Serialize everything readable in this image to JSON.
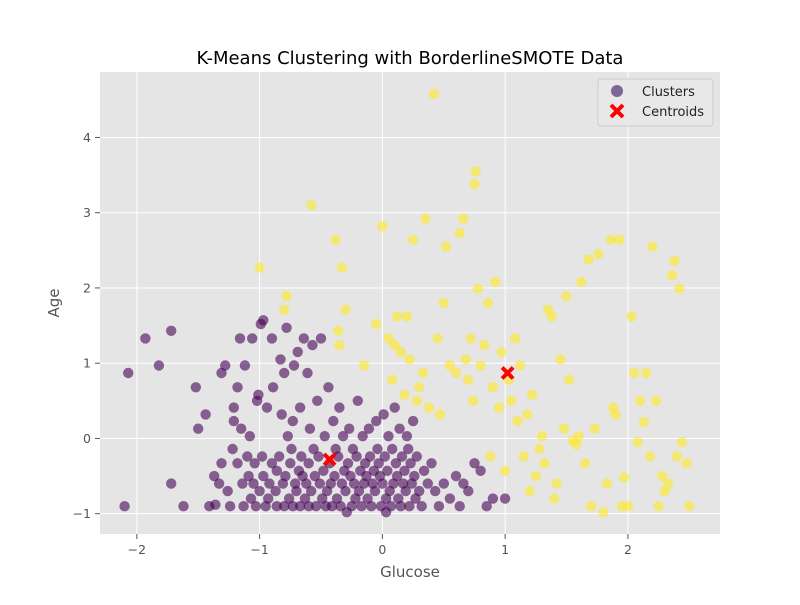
{
  "chart_data": {
    "type": "scatter",
    "title": "K-Means Clustering with BorderlineSMOTE Data",
    "xlabel": "Glucose",
    "ylabel": "Age",
    "xlim": [
      -2.3,
      2.75
    ],
    "ylim": [
      -1.27,
      4.87
    ],
    "xticks": [
      -2,
      -1,
      0,
      1,
      2
    ],
    "yticks": [
      -1,
      0,
      1,
      2,
      3,
      4
    ],
    "xtick_labels": [
      "−2",
      "−1",
      "0",
      "1",
      "2"
    ],
    "ytick_labels": [
      "−1",
      "0",
      "1",
      "2",
      "3",
      "4"
    ],
    "grid": true,
    "legend_position": "top-right",
    "legend": [
      {
        "label": "Clusters",
        "marker": "circle",
        "color": "#5a3d7a"
      },
      {
        "label": "Centroids",
        "marker": "x",
        "color": "#ff0000"
      }
    ],
    "colors": {
      "cluster_0": "#440154",
      "cluster_1": "#fde725",
      "centroid": "#ff0000",
      "plot_background": "#e5e5e5",
      "grid": "#ffffff"
    },
    "centroids": [
      {
        "x": -0.43,
        "y": -0.28
      },
      {
        "x": 1.02,
        "y": 0.87
      }
    ],
    "series": [
      {
        "cluster": 0,
        "points": [
          [
            -2.1,
            -0.9
          ],
          [
            -2.07,
            0.87
          ],
          [
            -1.93,
            1.33
          ],
          [
            -1.82,
            0.97
          ],
          [
            -1.72,
            1.43
          ],
          [
            -1.72,
            -0.6
          ],
          [
            -1.62,
            -0.9
          ],
          [
            -1.52,
            0.68
          ],
          [
            -1.5,
            0.13
          ],
          [
            -1.44,
            0.32
          ],
          [
            -1.41,
            -0.9
          ],
          [
            -1.37,
            -0.5
          ],
          [
            -1.36,
            -0.88
          ],
          [
            -1.33,
            -0.6
          ],
          [
            -1.31,
            -0.33
          ],
          [
            -1.31,
            0.87
          ],
          [
            -1.28,
            0.97
          ],
          [
            -1.26,
            -0.7
          ],
          [
            -1.24,
            -0.9
          ],
          [
            -1.22,
            -0.14
          ],
          [
            -1.21,
            0.23
          ],
          [
            -1.21,
            0.41
          ],
          [
            -1.18,
            -0.33
          ],
          [
            -1.18,
            0.68
          ],
          [
            -1.16,
            1.33
          ],
          [
            -1.15,
            0.13
          ],
          [
            -1.14,
            -0.6
          ],
          [
            -1.13,
            -0.9
          ],
          [
            -1.12,
            0.97
          ],
          [
            -1.1,
            -0.24
          ],
          [
            -1.09,
            -0.5
          ],
          [
            -1.08,
            0.03
          ],
          [
            -1.07,
            -0.8
          ],
          [
            -1.06,
            1.33
          ],
          [
            -1.05,
            -0.6
          ],
          [
            -1.04,
            -0.33
          ],
          [
            -1.03,
            -0.9
          ],
          [
            -1.02,
            0.5
          ],
          [
            -1.01,
            0.58
          ],
          [
            -1.0,
            -0.7
          ],
          [
            -0.99,
            1.52
          ],
          [
            -0.98,
            -0.24
          ],
          [
            -0.97,
            -0.5
          ],
          [
            -0.97,
            1.57
          ],
          [
            -0.95,
            -0.9
          ],
          [
            -0.94,
            0.41
          ],
          [
            -0.93,
            -0.8
          ],
          [
            -0.92,
            -0.6
          ],
          [
            -0.9,
            -0.33
          ],
          [
            -0.9,
            1.33
          ],
          [
            -0.89,
            0.68
          ],
          [
            -0.87,
            -0.7
          ],
          [
            -0.86,
            -0.9
          ],
          [
            -0.86,
            -0.43
          ],
          [
            -0.84,
            -0.24
          ],
          [
            -0.83,
            1.05
          ],
          [
            -0.82,
            0.32
          ],
          [
            -0.81,
            -0.6
          ],
          [
            -0.8,
            -0.9
          ],
          [
            -0.8,
            0.87
          ],
          [
            -0.79,
            -0.5
          ],
          [
            -0.78,
            1.47
          ],
          [
            -0.77,
            0.03
          ],
          [
            -0.76,
            -0.8
          ],
          [
            -0.75,
            -0.33
          ],
          [
            -0.74,
            -0.14
          ],
          [
            -0.73,
            0.23
          ],
          [
            -0.73,
            -0.9
          ],
          [
            -0.72,
            0.97
          ],
          [
            -0.71,
            -0.6
          ],
          [
            -0.7,
            -0.7
          ],
          [
            -0.69,
            1.15
          ],
          [
            -0.68,
            -0.43
          ],
          [
            -0.67,
            -0.9
          ],
          [
            -0.67,
            0.41
          ],
          [
            -0.66,
            -0.24
          ],
          [
            -0.65,
            -0.5
          ],
          [
            -0.64,
            1.33
          ],
          [
            -0.63,
            -0.8
          ],
          [
            -0.62,
            -0.6
          ],
          [
            -0.61,
            0.87
          ],
          [
            -0.6,
            -0.9
          ],
          [
            -0.6,
            -0.33
          ],
          [
            -0.59,
            0.13
          ],
          [
            -0.58,
            -0.7
          ],
          [
            -0.57,
            1.24
          ],
          [
            -0.56,
            -0.14
          ],
          [
            -0.55,
            -0.5
          ],
          [
            -0.54,
            -0.9
          ],
          [
            -0.53,
            0.5
          ],
          [
            -0.52,
            -0.24
          ],
          [
            -0.51,
            -0.6
          ],
          [
            -0.5,
            1.33
          ],
          [
            -0.49,
            -0.8
          ],
          [
            -0.48,
            -0.43
          ],
          [
            -0.47,
            0.03
          ],
          [
            -0.46,
            -0.9
          ],
          [
            -0.45,
            -0.7
          ],
          [
            -0.44,
            0.68
          ],
          [
            -0.43,
            -0.33
          ],
          [
            -0.42,
            -0.6
          ],
          [
            -0.41,
            -0.9
          ],
          [
            -0.4,
            0.23
          ],
          [
            -0.39,
            -0.5
          ],
          [
            -0.38,
            -0.14
          ],
          [
            -0.37,
            -0.8
          ],
          [
            -0.36,
            -0.24
          ],
          [
            -0.35,
            0.41
          ],
          [
            -0.34,
            -0.9
          ],
          [
            -0.33,
            -0.6
          ],
          [
            -0.32,
            0.03
          ],
          [
            -0.31,
            -0.43
          ],
          [
            -0.3,
            -0.7
          ],
          [
            -0.29,
            -0.98
          ],
          [
            -0.28,
            -0.33
          ],
          [
            -0.27,
            0.13
          ],
          [
            -0.26,
            -0.5
          ],
          [
            -0.25,
            -0.9
          ],
          [
            -0.24,
            -0.14
          ],
          [
            -0.23,
            -0.6
          ],
          [
            -0.22,
            -0.8
          ],
          [
            -0.21,
            -0.24
          ],
          [
            -0.2,
            0.5
          ],
          [
            -0.19,
            -0.7
          ],
          [
            -0.18,
            -0.43
          ],
          [
            -0.17,
            -0.9
          ],
          [
            -0.16,
            0.03
          ],
          [
            -0.15,
            -0.6
          ],
          [
            -0.14,
            -0.33
          ],
          [
            -0.13,
            -0.5
          ],
          [
            -0.12,
            -0.8
          ],
          [
            -0.11,
            0.13
          ],
          [
            -0.1,
            -0.24
          ],
          [
            -0.09,
            -0.9
          ],
          [
            -0.08,
            -0.6
          ],
          [
            -0.07,
            -0.43
          ],
          [
            -0.06,
            -0.7
          ],
          [
            -0.05,
            0.23
          ],
          [
            -0.04,
            -0.14
          ],
          [
            -0.03,
            -0.33
          ],
          [
            -0.02,
            -0.5
          ],
          [
            -0.01,
            -0.9
          ],
          [
            0.0,
            -0.6
          ],
          [
            0.01,
            0.32
          ],
          [
            0.02,
            -0.24
          ],
          [
            0.03,
            -0.8
          ],
          [
            0.04,
            -0.43
          ],
          [
            0.05,
            0.03
          ],
          [
            0.06,
            -0.7
          ],
          [
            0.07,
            -0.9
          ],
          [
            0.08,
            -0.14
          ],
          [
            0.09,
            -0.6
          ],
          [
            0.1,
            0.41
          ],
          [
            0.11,
            -0.33
          ],
          [
            0.12,
            -0.5
          ],
          [
            0.13,
            -0.8
          ],
          [
            0.14,
            0.13
          ],
          [
            0.15,
            -0.9
          ],
          [
            0.16,
            -0.24
          ],
          [
            0.17,
            -0.6
          ],
          [
            0.18,
            -0.43
          ],
          [
            0.19,
            -0.7
          ],
          [
            0.2,
            0.03
          ],
          [
            0.21,
            -0.14
          ],
          [
            0.22,
            -0.9
          ],
          [
            0.23,
            -0.33
          ],
          [
            0.24,
            -0.6
          ],
          [
            0.25,
            0.23
          ],
          [
            0.26,
            -0.5
          ],
          [
            0.27,
            -0.8
          ],
          [
            0.28,
            -0.24
          ],
          [
            0.3,
            -0.7
          ],
          [
            0.32,
            -0.9
          ],
          [
            0.34,
            -0.43
          ],
          [
            0.37,
            -0.6
          ],
          [
            0.4,
            -0.33
          ],
          [
            0.43,
            -0.7
          ],
          [
            0.46,
            -0.9
          ],
          [
            0.5,
            -0.6
          ],
          [
            0.55,
            -0.8
          ],
          [
            0.6,
            -0.5
          ],
          [
            0.63,
            -0.9
          ],
          [
            0.66,
            -0.6
          ],
          [
            0.7,
            -0.7
          ],
          [
            0.75,
            -0.33
          ],
          [
            0.8,
            -0.43
          ],
          [
            0.85,
            -0.9
          ],
          [
            0.9,
            -0.8
          ],
          [
            1.0,
            -0.8
          ],
          [
            0.03,
            -0.98
          ]
        ]
      },
      {
        "cluster": 1,
        "points": [
          [
            -1.0,
            2.27
          ],
          [
            -0.8,
            1.71
          ],
          [
            -0.78,
            1.89
          ],
          [
            -0.58,
            3.1
          ],
          [
            -0.38,
            2.64
          ],
          [
            -0.33,
            2.27
          ],
          [
            -0.3,
            1.71
          ],
          [
            -0.35,
            1.24
          ],
          [
            -0.36,
            1.43
          ],
          [
            -0.15,
            0.97
          ],
          [
            -0.05,
            1.52
          ],
          [
            0.0,
            2.82
          ],
          [
            0.05,
            1.33
          ],
          [
            0.08,
            0.78
          ],
          [
            0.1,
            1.24
          ],
          [
            0.12,
            1.62
          ],
          [
            0.15,
            1.15
          ],
          [
            0.18,
            0.58
          ],
          [
            0.2,
            1.62
          ],
          [
            0.22,
            1.05
          ],
          [
            0.25,
            2.64
          ],
          [
            0.28,
            0.5
          ],
          [
            0.3,
            0.68
          ],
          [
            0.33,
            0.87
          ],
          [
            0.35,
            2.92
          ],
          [
            0.38,
            0.41
          ],
          [
            0.42,
            4.58
          ],
          [
            0.45,
            1.33
          ],
          [
            0.47,
            0.32
          ],
          [
            0.5,
            1.8
          ],
          [
            0.52,
            2.55
          ],
          [
            0.55,
            0.97
          ],
          [
            0.6,
            0.87
          ],
          [
            0.63,
            2.73
          ],
          [
            0.66,
            2.92
          ],
          [
            0.68,
            1.05
          ],
          [
            0.7,
            0.78
          ],
          [
            0.72,
            1.33
          ],
          [
            0.74,
            0.5
          ],
          [
            0.75,
            3.38
          ],
          [
            0.76,
            3.55
          ],
          [
            0.78,
            1.99
          ],
          [
            0.8,
            0.97
          ],
          [
            0.83,
            1.24
          ],
          [
            0.86,
            1.8
          ],
          [
            0.88,
            -0.24
          ],
          [
            0.9,
            0.68
          ],
          [
            0.92,
            2.08
          ],
          [
            0.95,
            0.41
          ],
          [
            0.97,
            1.15
          ],
          [
            1.0,
            -0.43
          ],
          [
            1.03,
            0.78
          ],
          [
            1.05,
            0.5
          ],
          [
            1.08,
            1.33
          ],
          [
            1.1,
            0.23
          ],
          [
            1.12,
            0.97
          ],
          [
            1.15,
            -0.24
          ],
          [
            1.18,
            0.32
          ],
          [
            1.2,
            -0.7
          ],
          [
            1.22,
            0.58
          ],
          [
            1.25,
            -0.5
          ],
          [
            1.28,
            -0.14
          ],
          [
            1.3,
            0.03
          ],
          [
            1.32,
            -0.33
          ],
          [
            1.35,
            1.71
          ],
          [
            1.38,
            1.62
          ],
          [
            1.4,
            -0.8
          ],
          [
            1.42,
            -0.6
          ],
          [
            1.45,
            1.05
          ],
          [
            1.48,
            0.13
          ],
          [
            1.5,
            1.89
          ],
          [
            1.52,
            0.78
          ],
          [
            1.55,
            -0.03
          ],
          [
            1.58,
            -0.08
          ],
          [
            1.6,
            0.03
          ],
          [
            1.62,
            2.08
          ],
          [
            1.65,
            -0.33
          ],
          [
            1.68,
            2.38
          ],
          [
            1.7,
            -0.9
          ],
          [
            1.73,
            0.13
          ],
          [
            1.76,
            2.45
          ],
          [
            1.8,
            -0.98
          ],
          [
            1.83,
            -0.6
          ],
          [
            1.86,
            2.64
          ],
          [
            1.88,
            0.41
          ],
          [
            1.9,
            0.32
          ],
          [
            1.93,
            2.64
          ],
          [
            1.95,
            -0.9
          ],
          [
            1.97,
            -0.52
          ],
          [
            2.0,
            -0.9
          ],
          [
            2.03,
            1.62
          ],
          [
            2.05,
            0.87
          ],
          [
            2.08,
            -0.05
          ],
          [
            2.1,
            0.5
          ],
          [
            2.13,
            0.22
          ],
          [
            2.15,
            0.87
          ],
          [
            2.18,
            -0.24
          ],
          [
            2.2,
            2.55
          ],
          [
            2.23,
            0.5
          ],
          [
            2.25,
            -0.9
          ],
          [
            2.28,
            -0.5
          ],
          [
            2.3,
            -0.7
          ],
          [
            2.33,
            -0.6
          ],
          [
            2.36,
            2.17
          ],
          [
            2.38,
            2.36
          ],
          [
            2.4,
            -0.24
          ],
          [
            2.42,
            1.99
          ],
          [
            2.44,
            -0.05
          ],
          [
            2.48,
            -0.33
          ],
          [
            2.5,
            -0.9
          ]
        ]
      }
    ]
  }
}
